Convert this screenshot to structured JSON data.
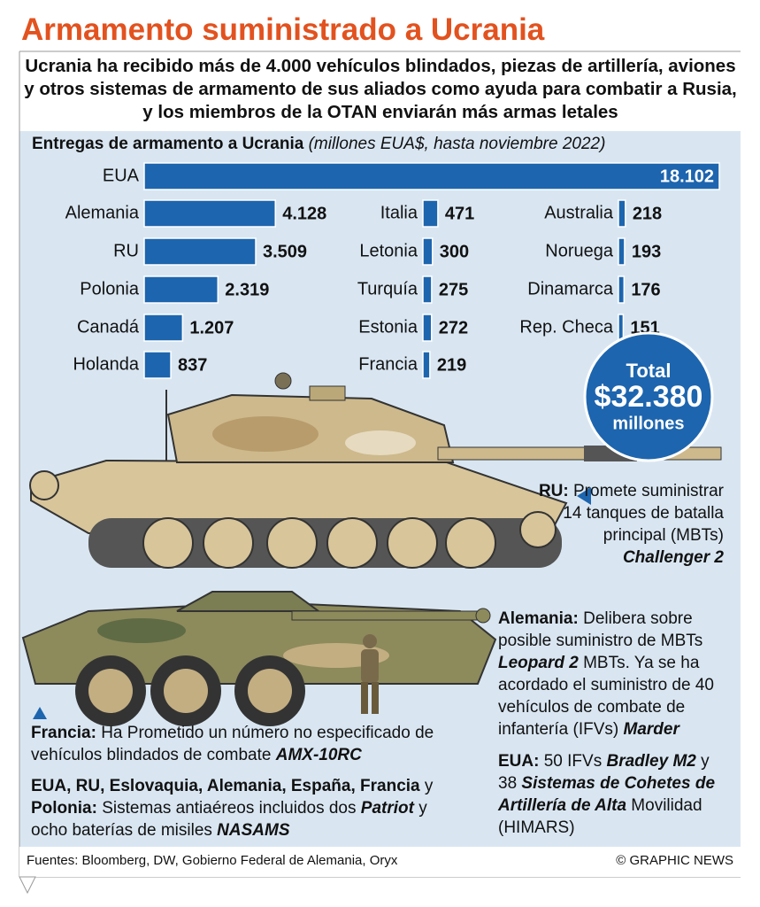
{
  "title": "Armamento suministrado a Ucrania",
  "intro": "Ucrania ha recibido más de 4.000 vehículos blindados, piezas de artillería, aviones y otros sistemas de armamento de sus aliados como ayuda para combatir a Rusia, y los miembros de la OTAN enviarán más armas letales",
  "chart_data": {
    "type": "bar",
    "orientation": "horizontal",
    "title": "Entregas de armamento a Ucrania",
    "subtitle": "(millones EUA$, hasta noviembre 2022)",
    "categories": [
      "EUA",
      "Alemania",
      "RU",
      "Polonia",
      "Canadá",
      "Holanda",
      "Italia",
      "Letonia",
      "Turquía",
      "Estonia",
      "Francia",
      "Australia",
      "Noruega",
      "Dinamarca",
      "Rep. Checa"
    ],
    "values": [
      18102,
      4128,
      3509,
      2319,
      1207,
      837,
      471,
      300,
      275,
      272,
      219,
      218,
      193,
      176,
      151
    ],
    "value_labels": [
      "18.102",
      "4.128",
      "3.509",
      "2.319",
      "1.207",
      "837",
      "471",
      "300",
      "275",
      "272",
      "219",
      "218",
      "193",
      "176",
      "151"
    ],
    "color": "#1d65ae"
  },
  "total": {
    "label": "Total",
    "amount": "$32.380",
    "unit": "millones"
  },
  "notes": [
    {
      "segments": [
        {
          "text": "RU:",
          "style": "b"
        },
        {
          "text": " Promete suministrar 14 tanques de batalla principal (MBTs) ",
          "style": "normal"
        },
        {
          "text": "Challenger 2",
          "style": "bi"
        }
      ]
    },
    {
      "segments": [
        {
          "text": "Alemania:",
          "style": "b"
        },
        {
          "text": " Delibera sobre posible suministro de MBTs ",
          "style": "normal"
        },
        {
          "text": "Leopard 2",
          "style": "bi"
        },
        {
          "text": " MBTs. Ya se ha acordado el suministro de 40 vehículos de combate de infantería (IFVs) ",
          "style": "normal"
        },
        {
          "text": "Marder",
          "style": "bi"
        }
      ]
    },
    {
      "segments": [
        {
          "text": "EUA:",
          "style": "b"
        },
        {
          "text": " 50 IFVs ",
          "style": "normal"
        },
        {
          "text": "Bradley M2",
          "style": "bi"
        },
        {
          "text": " y 38 ",
          "style": "normal"
        },
        {
          "text": "Sistemas de Cohetes de Artillería de Alta",
          "style": "bi"
        },
        {
          "text": " Movilidad (HIMARS)",
          "style": "normal"
        }
      ]
    },
    {
      "segments": [
        {
          "text": "Francia:",
          "style": "b"
        },
        {
          "text": " Ha Prometido un número no especificado de vehículos blindados de combate ",
          "style": "normal"
        },
        {
          "text": "AMX-10RC",
          "style": "bi"
        }
      ]
    },
    {
      "segments": [
        {
          "text": "EUA, RU, Eslovaquia, Alemania, España, Francia",
          "style": "b"
        },
        {
          "text": " y ",
          "style": "normal"
        },
        {
          "text": "Polonia:",
          "style": "b"
        },
        {
          "text": " Sistemas antiaéreos incluidos dos ",
          "style": "normal"
        },
        {
          "text": "Patriot",
          "style": "bi"
        },
        {
          "text": " y ocho baterías de misiles ",
          "style": "normal"
        },
        {
          "text": "NASAMS",
          "style": "bi"
        }
      ]
    }
  ],
  "sources": "Fuentes: Bloomberg, DW, Gobierno Federal de Alemania, Oryx",
  "credit": "© GRAPHIC NEWS"
}
